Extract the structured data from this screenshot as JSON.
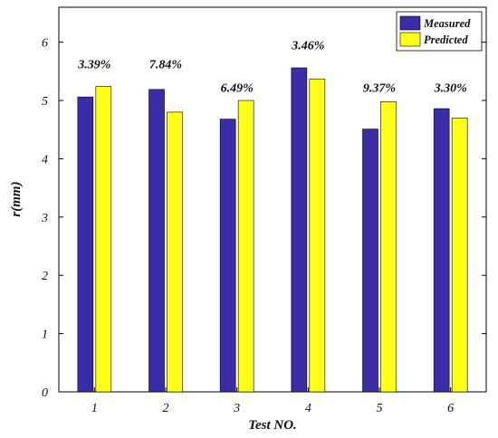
{
  "chart_data": {
    "type": "bar",
    "categories": [
      "1",
      "2",
      "3",
      "4",
      "5",
      "6"
    ],
    "series": [
      {
        "name": "Measured",
        "values": [
          5.06,
          5.19,
          4.68,
          5.56,
          4.51,
          4.86
        ],
        "color": "#3b2ca8"
      },
      {
        "name": "Predicted",
        "values": [
          5.24,
          4.8,
          5.0,
          5.37,
          4.98,
          4.7
        ],
        "color": "#ffff1a"
      }
    ],
    "data_labels": [
      "3.39%",
      "7.84%",
      "6.49%",
      "3.46%",
      "9.37%",
      "3.30%"
    ],
    "data_label_y": [
      5.55,
      5.55,
      5.15,
      5.88,
      5.15,
      5.15
    ],
    "xlabel": "Test NO.",
    "ylabel": "r(mm)",
    "ylim": [
      0,
      6.6
    ],
    "yticks": [
      "0",
      "1",
      "2",
      "3",
      "4",
      "5",
      "6"
    ],
    "grid": false,
    "legend_position": "top-right"
  }
}
